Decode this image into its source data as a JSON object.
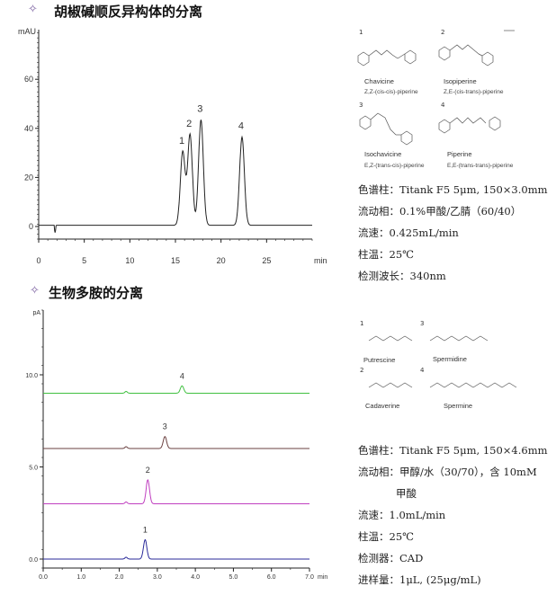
{
  "sections": [
    {
      "title": "胡椒碱顺反异构体的分离",
      "icon": "diamond-icon",
      "compounds": [
        {
          "num": "1",
          "name": "Chavicine",
          "isomer": "Z,Z-(cis-cis)-piperine"
        },
        {
          "num": "2",
          "name": "Isopiperine",
          "isomer": "Z,E-(cis-trans)-piperine"
        },
        {
          "num": "3",
          "name": "Isochavicine",
          "isomer": "E,Z-(trans-cis)-piperine"
        },
        {
          "num": "4",
          "name": "Piperine",
          "isomer": "E,E-(trans-trans)-piperine"
        }
      ],
      "conditions": [
        "色谱柱：Titank F5 5μm, 150×3.0mm",
        "流动相：0.1%甲酸/乙腈（60/40）",
        "流速：0.425mL/min",
        "柱温：25℃",
        "检测波长：340nm"
      ]
    },
    {
      "title": "生物多胺的分离",
      "icon": "diamond-icon",
      "compounds": [
        {
          "num": "1",
          "name": "Putrescine"
        },
        {
          "num": "3",
          "name": "Spermidine"
        },
        {
          "num": "2",
          "name": "Cadaverine"
        },
        {
          "num": "4",
          "name": "Spermine"
        }
      ],
      "conditions": [
        "色谱柱：Titank F5 5μm, 150×4.6mm",
        "流动相：甲醇/水（30/70），含 10mM",
        "甲酸",
        "流速：1.0mL/min",
        "柱温：25℃",
        "检测器：CAD",
        "进样量：1μL, (25μg/mL)"
      ]
    }
  ],
  "chart_data": [
    {
      "type": "line",
      "ylabel": "mAU",
      "xlabel": "min",
      "xlim": [
        0,
        30
      ],
      "ylim": [
        -5,
        78
      ],
      "xticks": [
        "0",
        "5",
        "10",
        "15",
        "20",
        "25"
      ],
      "yticks": [
        "0",
        "20",
        "40",
        "60"
      ],
      "line_color": "#222222",
      "peaks": [
        {
          "label": "1",
          "time": 15.8,
          "height": 30
        },
        {
          "label": "2",
          "time": 16.6,
          "height": 37
        },
        {
          "label": "3",
          "time": 17.8,
          "height": 43
        },
        {
          "label": "4",
          "time": 22.3,
          "height": 36
        }
      ]
    },
    {
      "type": "line",
      "ylabel": "pA",
      "xlabel": "min",
      "xlim": [
        0,
        7
      ],
      "ylim": [
        -0.5,
        13.2
      ],
      "xticks": [
        "0.0",
        "1.0",
        "2.0",
        "3.0",
        "4.0",
        "5.0",
        "6.0",
        "7.0"
      ],
      "yticks": [
        "0.0",
        "5.0",
        "10.0"
      ],
      "series": [
        {
          "color": "#2a2a9a",
          "baseline": 0.0,
          "peak": {
            "label": "1",
            "time": 2.68,
            "height": 1.05
          }
        },
        {
          "color": "#c040c0",
          "baseline": 3.0,
          "peak": {
            "label": "2",
            "time": 2.75,
            "height": 1.3
          }
        },
        {
          "color": "#6a4040",
          "baseline": 6.0,
          "peak": {
            "label": "3",
            "time": 3.2,
            "height": 0.65
          }
        },
        {
          "color": "#40c040",
          "baseline": 9.0,
          "peak": {
            "label": "4",
            "time": 3.65,
            "height": 0.4
          }
        }
      ]
    }
  ]
}
